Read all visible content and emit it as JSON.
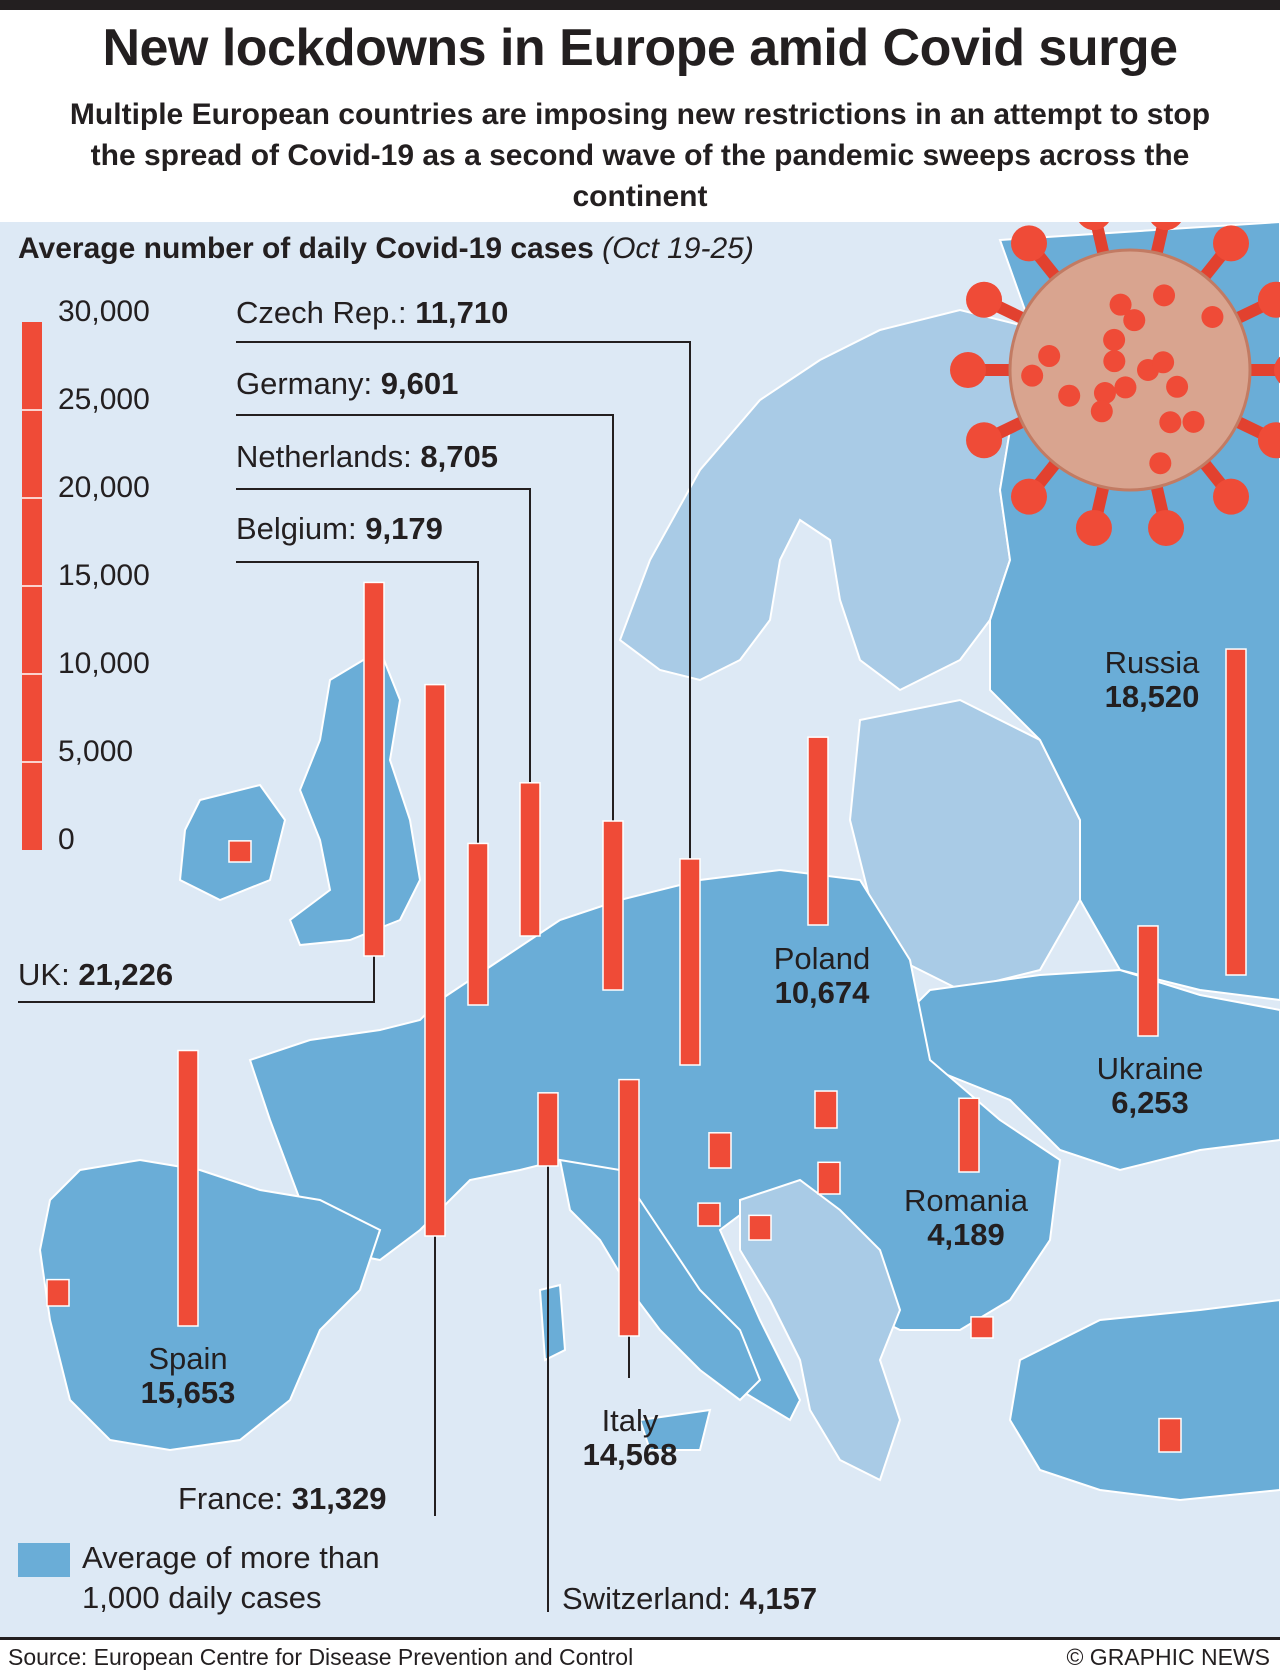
{
  "header": {
    "title": "New lockdowns in Europe amid Covid surge",
    "subtitle": "Multiple European countries are imposing new restrictions in an attempt to stop the spread of Covid-19 as a second wave of the pandemic sweeps across the continent"
  },
  "chart_title": {
    "main": "Average number of daily Covid-19 cases",
    "period": "(Oct 19-25)"
  },
  "colors": {
    "sea": "#dde9f5",
    "highlight_land": "#6aadd7",
    "other_land": "#a9cbe6",
    "bar": "#ef4b37",
    "line": "#231f20",
    "text": "#231f20"
  },
  "chart_data": {
    "type": "bar",
    "ylim": [
      0,
      30000
    ],
    "y_ticks": [
      "30,000",
      "25,000",
      "20,000",
      "15,000",
      "10,000",
      "5,000",
      "0"
    ],
    "labeled_countries": [
      {
        "name": "Czech Rep.:",
        "value_label": "11,710",
        "value": 11710
      },
      {
        "name": "Germany:",
        "value_label": "9,601",
        "value": 9601
      },
      {
        "name": "Netherlands:",
        "value_label": "8,705",
        "value": 8705
      },
      {
        "name": "Belgium:",
        "value_label": "9,179",
        "value": 9179
      },
      {
        "name": "UK:",
        "value_label": "21,226",
        "value": 21226
      },
      {
        "name": "Russia",
        "value_label": "18,520",
        "value": 18520
      },
      {
        "name": "Poland",
        "value_label": "10,674",
        "value": 10674
      },
      {
        "name": "Ukraine",
        "value_label": "6,253",
        "value": 6253
      },
      {
        "name": "Romania",
        "value_label": "4,189",
        "value": 4189
      },
      {
        "name": "Spain",
        "value_label": "15,653",
        "value": 15653
      },
      {
        "name": "Italy",
        "value_label": "14,568",
        "value": 14568
      },
      {
        "name": "France:",
        "value_label": "31,329",
        "value": 31329
      },
      {
        "name": "Switzerland:",
        "value_label": "4,157",
        "value": 4157
      }
    ],
    "unlabeled_values": [
      1200,
      1500,
      2000,
      2100,
      1800,
      1300,
      1400,
      1200,
      1900
    ]
  },
  "legend": {
    "line1": "Average of more than",
    "line2": "1,000 daily cases"
  },
  "footer": {
    "source": "Source: European Centre for Disease Prevention and Control",
    "credit": "© GRAPHIC NEWS"
  }
}
